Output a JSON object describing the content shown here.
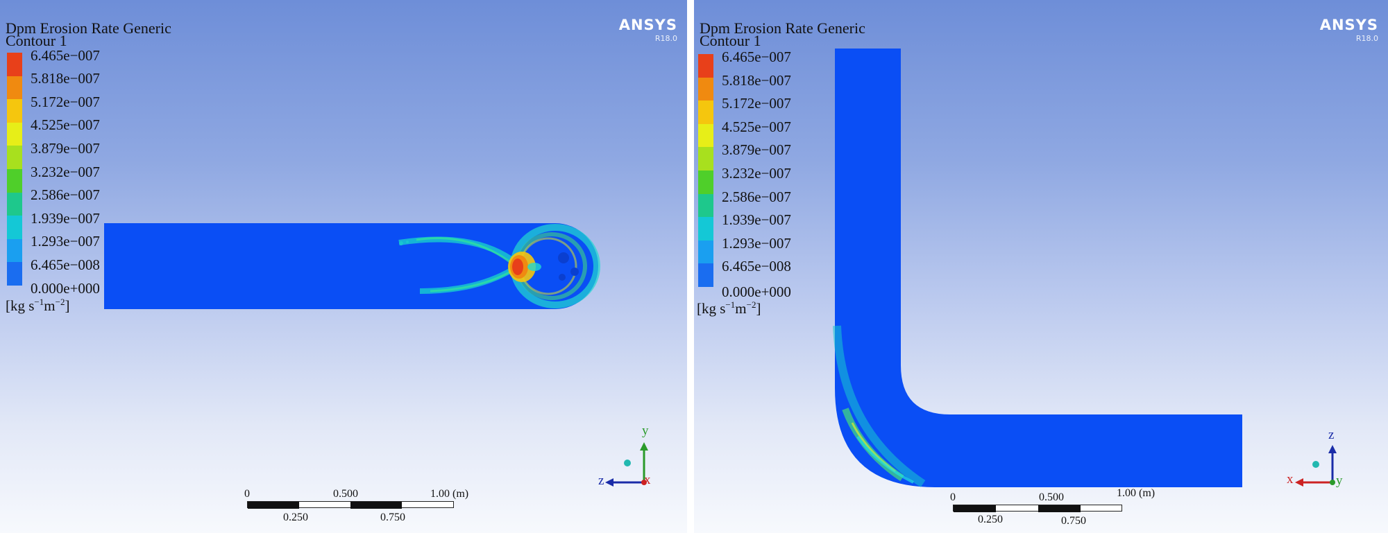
{
  "left": {
    "title_line1": "Dpm Erosion Rate Generic",
    "title_line2": "Contour 1",
    "logo_brand": "ANSYS",
    "logo_version": "R18.0",
    "legend_values": [
      "6.465e−007",
      "5.818e−007",
      "5.172e−007",
      "4.525e−007",
      "3.879e−007",
      "3.232e−007",
      "2.586e−007",
      "1.939e−007",
      "1.293e−007",
      "6.465e−008",
      "0.000e+000"
    ],
    "units_prefix": "[kg s",
    "units_exp1": "−1",
    "units_mid": "m",
    "units_exp2": "−2",
    "units_suffix": "]",
    "scale_labels": {
      "t0": "0",
      "t500": "0.500",
      "t100": "1.00 (m)",
      "b250": "0.250",
      "b750": "0.750"
    },
    "axes": {
      "up": "y",
      "left": "z",
      "center": "x"
    }
  },
  "right": {
    "title_line1": "Dpm Erosion Rate Generic",
    "title_line2": "Contour 1",
    "logo_brand": "ANSYS",
    "logo_version": "R18.0",
    "legend_values": [
      "6.465e−007",
      "5.818e−007",
      "5.172e−007",
      "4.525e−007",
      "3.879e−007",
      "3.232e−007",
      "2.586e−007",
      "1.939e−007",
      "1.293e−007",
      "6.465e−008",
      "0.000e+000"
    ],
    "units_prefix": "[kg s",
    "units_exp1": "−1",
    "units_mid": "m",
    "units_exp2": "−2",
    "units_suffix": "]",
    "scale_labels": {
      "t0": "0",
      "t500": "0.500",
      "t100": "1.00 (m)",
      "b250": "0.250",
      "b750": "0.750"
    },
    "axes": {
      "up": "z",
      "left": "x",
      "right": "y"
    }
  },
  "colorbar_colors": [
    "#e8401a",
    "#f08a10",
    "#f5c60e",
    "#e7ee18",
    "#a8e01e",
    "#4fcf2a",
    "#1ec88c",
    "#14c8d6",
    "#1a9ff0",
    "#1a6df0"
  ],
  "domain_color": "#0a4ef5"
}
